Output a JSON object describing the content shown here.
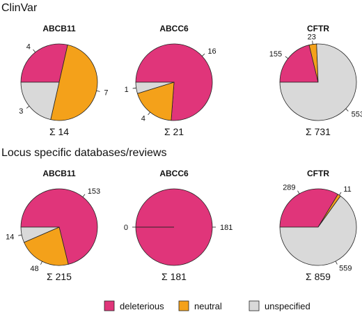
{
  "sections": [
    {
      "title": "ClinVar"
    },
    {
      "title": "Locus specific databases/reviews"
    }
  ],
  "legend": {
    "items": [
      {
        "label": "deleterious",
        "color": "#e0357a"
      },
      {
        "label": "neutral",
        "color": "#f4a11a"
      },
      {
        "label": "unspecified",
        "color": "#d9d9d9"
      }
    ]
  },
  "chart_data": [
    {
      "type": "pie",
      "section": "ClinVar",
      "title": "ABCB11",
      "total": "Σ 14",
      "categories": [
        "deleterious",
        "neutral",
        "unspecified"
      ],
      "values": [
        4,
        7,
        3
      ]
    },
    {
      "type": "pie",
      "section": "ClinVar",
      "title": "ABCC6",
      "total": "Σ 21",
      "categories": [
        "deleterious",
        "neutral",
        "unspecified"
      ],
      "values": [
        16,
        4,
        1
      ]
    },
    {
      "type": "pie",
      "section": "ClinVar",
      "title": "CFTR",
      "total": "Σ 731",
      "categories": [
        "deleterious",
        "neutral",
        "unspecified"
      ],
      "values": [
        155,
        23,
        553
      ]
    },
    {
      "type": "pie",
      "section": "Locus specific databases/reviews",
      "title": "ABCB11",
      "total": "Σ 215",
      "categories": [
        "deleterious",
        "neutral",
        "unspecified"
      ],
      "values": [
        153,
        48,
        14
      ]
    },
    {
      "type": "pie",
      "section": "Locus specific databases/reviews",
      "title": "ABCC6",
      "total": "Σ 181",
      "categories": [
        "deleterious",
        "neutral",
        "unspecified"
      ],
      "values": [
        181,
        0,
        0
      ]
    },
    {
      "type": "pie",
      "section": "Locus specific databases/reviews",
      "title": "CFTR",
      "total": "Σ 859",
      "categories": [
        "deleterious",
        "neutral",
        "unspecified"
      ],
      "values": [
        289,
        11,
        559
      ]
    }
  ]
}
